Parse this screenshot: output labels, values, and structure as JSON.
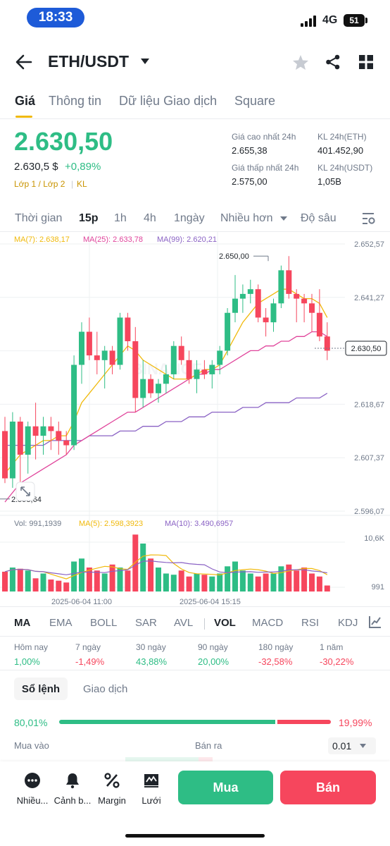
{
  "status_bar": {
    "time": "18:33",
    "network": "4G",
    "battery": "51"
  },
  "header": {
    "pair": "ETH/USDT"
  },
  "tabs": [
    "Giá",
    "Thông tin",
    "Dữ liệu Giao dịch",
    "Square"
  ],
  "price": {
    "last": "2.630,50",
    "usd": "2.630,5 $",
    "change": "+0,89%",
    "tags": [
      "Lớp 1 / Lớp 2",
      "KL"
    ]
  },
  "stats": {
    "high_label": "Giá cao nhất 24h",
    "high": "2.655,38",
    "low_label": "Giá thấp nhất 24h",
    "low": "2.575,00",
    "vol_base_label": "KL 24h(ETH)",
    "vol_base": "401.452,90",
    "vol_quote_label": "KL 24h(USDT)",
    "vol_quote": "1,05B"
  },
  "intervals": [
    "Thời gian",
    "15p",
    "1h",
    "4h",
    "1ngày",
    "Nhiều hơn",
    "Độ sâu"
  ],
  "active_interval": "15p",
  "chart_legend": {
    "ma7": "MA(7): 2.638,17",
    "ma25": "MA(25): 2.633,78",
    "ma99": "MA(99): 2.620,21"
  },
  "vol_legend": {
    "vol": "Vol: 991,1939",
    "ma5": "MA(5): 2.598,3923",
    "ma10": "MA(10): 3.490,6957"
  },
  "colors": {
    "up": "#2ebd85",
    "down": "#f6465d",
    "ma7": "#f0b90b",
    "ma25": "#e0449b",
    "ma99": "#8a62c4",
    "accent": "#f0b90b"
  },
  "chart_data": {
    "type": "candlestick",
    "price_axis": [
      "2.652,57",
      "2.641,27",
      "2.629,97",
      "2.618,67",
      "2.607,37",
      "2.596,07"
    ],
    "price_ylim": [
      2596.07,
      2652.57
    ],
    "current_price_label": "2.630,50",
    "current_price": 2630.5,
    "high_marker": {
      "label": "2.650,00",
      "value": 2650.0
    },
    "low_marker": {
      "label": "2.598,64",
      "value": 2598.64
    },
    "x_labels": [
      "2025-06-04 11:00",
      "2025-06-04 15:15"
    ],
    "volume_axis": [
      "10,6K",
      "991"
    ],
    "candles": [
      [
        2613,
        2616,
        2602,
        2603
      ],
      [
        2603,
        2617,
        2601,
        2615
      ],
      [
        2615,
        2616,
        2601,
        2608
      ],
      [
        2608,
        2615,
        2604,
        2614
      ],
      [
        2614,
        2619,
        2607,
        2612
      ],
      [
        2612,
        2616,
        2608,
        2614
      ],
      [
        2614,
        2616,
        2609,
        2613
      ],
      [
        2613,
        2615,
        2608,
        2611
      ],
      [
        2611,
        2613,
        2608,
        2610
      ],
      [
        2610,
        2629,
        2609,
        2627
      ],
      [
        2627,
        2636,
        2623,
        2634
      ],
      [
        2634,
        2637,
        2628,
        2629
      ],
      [
        2629,
        2634,
        2625,
        2628
      ],
      [
        2628,
        2631,
        2622,
        2630
      ],
      [
        2630,
        2631,
        2625,
        2627
      ],
      [
        2627,
        2638,
        2626,
        2637
      ],
      [
        2637,
        2638,
        2630,
        2632
      ],
      [
        2632,
        2635,
        2617,
        2620
      ],
      [
        2620,
        2628,
        2618,
        2624
      ],
      [
        2624,
        2625,
        2620,
        2621
      ],
      [
        2621,
        2624,
        2619,
        2623
      ],
      [
        2623,
        2627,
        2621,
        2625
      ],
      [
        2625,
        2632,
        2624,
        2631
      ],
      [
        2631,
        2633,
        2627,
        2628
      ],
      [
        2628,
        2630,
        2623,
        2624
      ],
      [
        2624,
        2628,
        2621,
        2626
      ],
      [
        2626,
        2628,
        2624,
        2625
      ],
      [
        2625,
        2628,
        2622,
        2627
      ],
      [
        2627,
        2631,
        2625,
        2630
      ],
      [
        2630,
        2639,
        2629,
        2638
      ],
      [
        2638,
        2646,
        2636,
        2641
      ],
      [
        2641,
        2644,
        2638,
        2642
      ],
      [
        2642,
        2645,
        2640,
        2643
      ],
      [
        2643,
        2644,
        2636,
        2637
      ],
      [
        2637,
        2639,
        2633,
        2636
      ],
      [
        2636,
        2641,
        2634,
        2640
      ],
      [
        2640,
        2648,
        2639,
        2647
      ],
      [
        2647,
        2650,
        2641,
        2642
      ],
      [
        2642,
        2643,
        2636,
        2641
      ],
      [
        2641,
        2642,
        2636,
        2640
      ],
      [
        2640,
        2642,
        2634,
        2638
      ],
      [
        2638,
        2643,
        2632,
        2633
      ],
      [
        2633,
        2636,
        2628,
        2630
      ]
    ],
    "volumes": [
      0.33,
      0.4,
      0.38,
      0.35,
      0.22,
      0.3,
      0.2,
      0.18,
      0.15,
      0.5,
      0.55,
      0.4,
      0.35,
      0.3,
      0.45,
      0.4,
      0.35,
      0.95,
      0.8,
      0.55,
      0.4,
      0.3,
      0.28,
      0.35,
      0.25,
      0.3,
      0.28,
      0.25,
      0.3,
      0.42,
      0.5,
      0.35,
      0.3,
      0.25,
      0.3,
      0.3,
      0.42,
      0.45,
      0.35,
      0.4,
      0.3,
      0.25,
      0.1
    ],
    "ma7": [
      2604,
      2606,
      2608,
      2609,
      2610,
      2611,
      2611,
      2612,
      2612,
      2615,
      2619,
      2621,
      2623,
      2625,
      2627,
      2629,
      2631,
      2630,
      2628,
      2627,
      2626,
      2625,
      2624,
      2624,
      2624,
      2625,
      2626,
      2626,
      2627,
      2630,
      2633,
      2636,
      2638,
      2640,
      2641,
      2642,
      2643,
      2643,
      2642,
      2641,
      2641,
      2640,
      2637
    ],
    "ma25": [
      2598,
      2600,
      2602,
      2603,
      2604,
      2605,
      2606,
      2607,
      2608,
      2610,
      2611,
      2612,
      2613,
      2614,
      2615,
      2616,
      2617,
      2617,
      2618,
      2619,
      2620,
      2621,
      2622,
      2623,
      2624,
      2625,
      2625,
      2626,
      2626,
      2627,
      2628,
      2629,
      2630,
      2630,
      2631,
      2631,
      2632,
      2632,
      2633,
      2633,
      2634,
      2634,
      2633
    ],
    "ma99": [
      2610,
      2610,
      2610,
      2610,
      2610,
      2610,
      2611,
      2611,
      2611,
      2611,
      2611,
      2612,
      2612,
      2612,
      2612,
      2613,
      2613,
      2613,
      2614,
      2614,
      2614,
      2615,
      2615,
      2615,
      2616,
      2616,
      2616,
      2617,
      2617,
      2617,
      2617,
      2618,
      2618,
      2618,
      2619,
      2619,
      2619,
      2619,
      2620,
      2620,
      2620,
      2620,
      2621
    ]
  },
  "indicators": [
    "MA",
    "EMA",
    "BOLL",
    "SAR",
    "AVL",
    "VOL",
    "MACD",
    "RSI",
    "KDJ"
  ],
  "performance": [
    {
      "label": "Hôm nay",
      "value": "1,00%",
      "dir": "up"
    },
    {
      "label": "7 ngày",
      "value": "-1,49%",
      "dir": "down"
    },
    {
      "label": "30 ngày",
      "value": "43,88%",
      "dir": "up"
    },
    {
      "label": "90 ngày",
      "value": "20,00%",
      "dir": "up"
    },
    {
      "label": "180 ngày",
      "value": "-32,58%",
      "dir": "down"
    },
    {
      "label": "1 năm",
      "value": "-30,22%",
      "dir": "down"
    }
  ],
  "orderbook": {
    "tab_active": "Sổ lệnh",
    "tab_other": "Giao dịch",
    "buy_ratio": "80,01%",
    "sell_ratio": "19,99%",
    "buy_fraction": 0.8001,
    "buy_label": "Mua vào",
    "sell_label": "Bán ra",
    "step": "0.01"
  },
  "bottom_bar": {
    "actions": [
      {
        "label": "Nhiều...",
        "icon": "more-icon"
      },
      {
        "label": "Cảnh b...",
        "icon": "bell-icon"
      },
      {
        "label": "Margin",
        "icon": "percent-icon"
      },
      {
        "label": "Lưới",
        "icon": "grid-bot-icon"
      }
    ],
    "buy": "Mua",
    "sell": "Bán"
  }
}
